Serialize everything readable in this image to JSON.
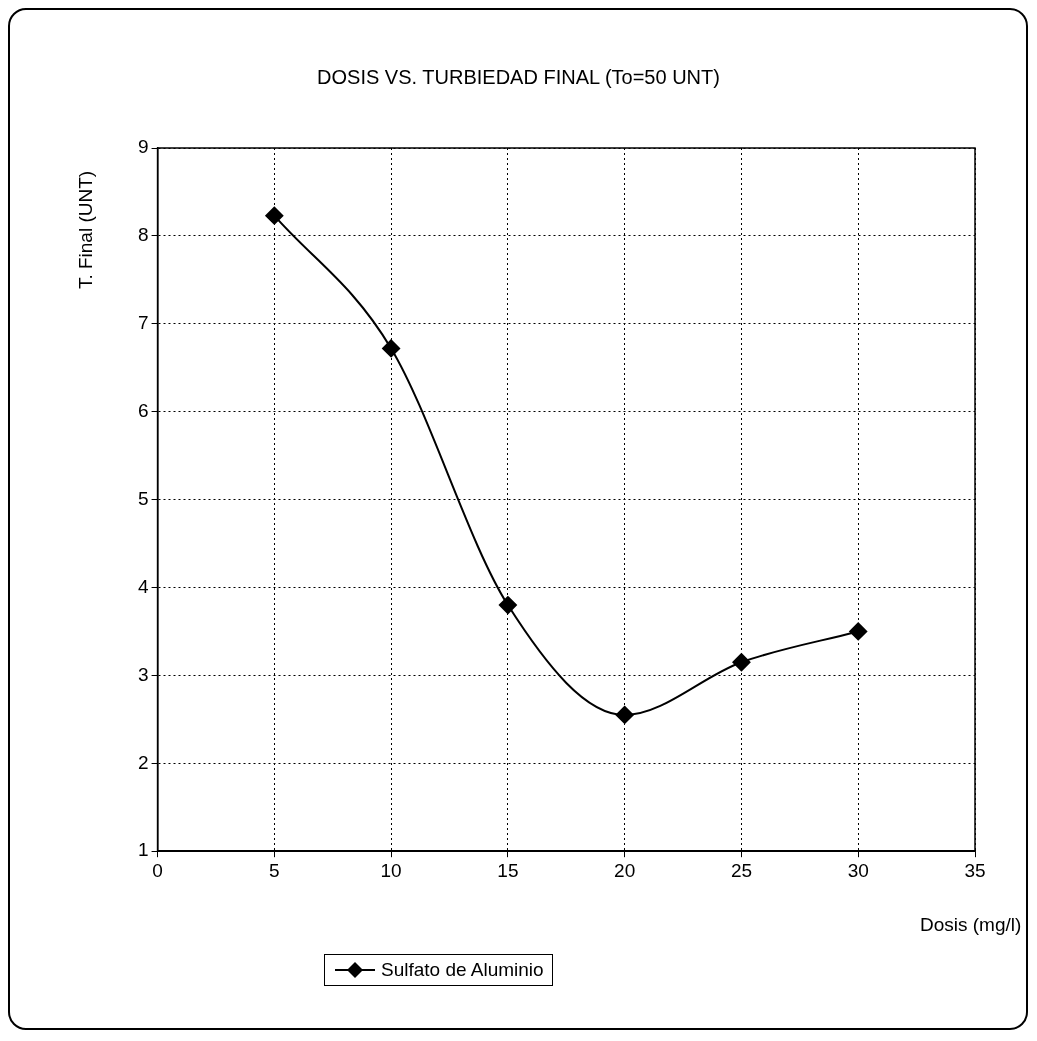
{
  "chart_data": {
    "type": "line",
    "title": "DOSIS VS. TURBIEDAD FINAL (To=50 UNT)",
    "xlabel": "Dosis (mg/l)",
    "ylabel": "T. Final (UNT)",
    "x": [
      5,
      10,
      15,
      20,
      25,
      30
    ],
    "series": [
      {
        "name": "Sulfato de Aluminio",
        "color": "#000000",
        "values": [
          8.23,
          6.72,
          3.8,
          2.55,
          3.15,
          3.5
        ]
      }
    ],
    "xlim": [
      0,
      35
    ],
    "xticks": [
      0,
      5,
      10,
      15,
      20,
      25,
      30,
      35
    ],
    "ylim": [
      1,
      9
    ],
    "yticks": [
      1,
      2,
      3,
      4,
      5,
      6,
      7,
      8,
      9
    ],
    "grid": true,
    "legend": "bottom left",
    "marker": "diamond",
    "line_style": "solid"
  }
}
